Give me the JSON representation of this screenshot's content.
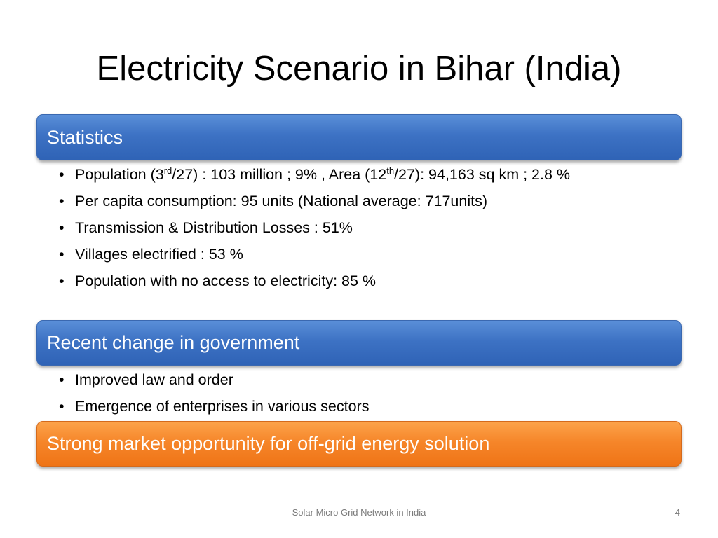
{
  "slide": {
    "title": "Electricity Scenario in Bihar (India)",
    "sections": [
      {
        "heading": "Statistics",
        "bullets": [
          {
            "parts": [
              "Population (3",
              "rd",
              "/27) : 103 million ; 9%  , Area (12",
              "th",
              "/27):   94,163 sq km ; 2.8 %"
            ]
          },
          {
            "text": "Per capita consumption: 95 units (National average: 717units)"
          },
          {
            "text": "Transmission & Distribution Losses : 51%"
          },
          {
            "text": "Villages electrified : 53 %"
          },
          {
            "text": "Population with no access to electricity: 85 %"
          }
        ]
      },
      {
        "heading": "Recent change in government",
        "bullets": [
          {
            "text": "Improved law and order"
          },
          {
            "text": "Emergence of enterprises in various sectors"
          }
        ]
      },
      {
        "heading": "Strong market opportunity for  off-grid energy solution",
        "bullets": []
      }
    ],
    "bullet_char": "•",
    "footer": "Solar Micro Grid Network in India",
    "page_number": "4",
    "colors": {
      "blue_bar": "#3d72c4",
      "orange_bar": "#f6862a",
      "footer_text": "#7a7a7a"
    }
  }
}
